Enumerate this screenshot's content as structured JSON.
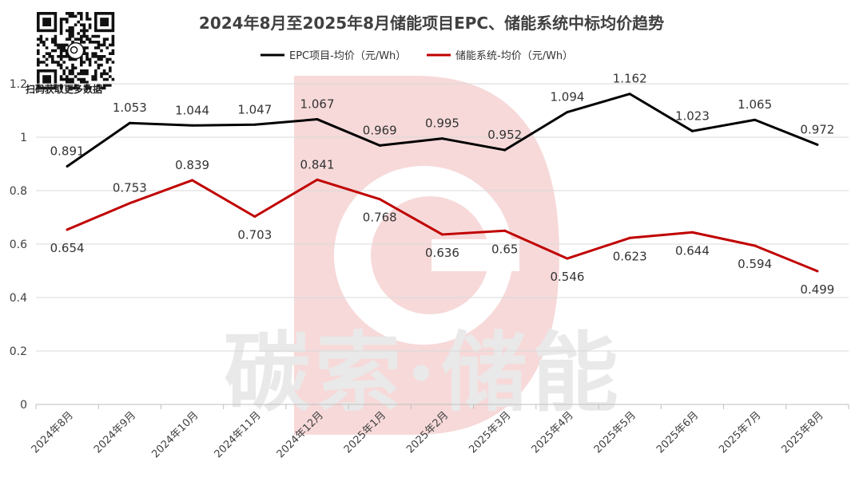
{
  "chart_data": {
    "type": "line",
    "title": "2024年8月至2025年8月储能项目EPC、储能系统中标均价趋势",
    "categories": [
      "2024年8月",
      "2024年9月",
      "2024年10月",
      "2024年11月",
      "2024年12月",
      "2025年1月",
      "2025年2月",
      "2025年3月",
      "2025年4月",
      "2025年5月",
      "2025年6月",
      "2025年7月",
      "2025年8月"
    ],
    "series": [
      {
        "name": "EPC项目-均价（元/Wh）",
        "color": "#000000",
        "values": [
          0.891,
          1.053,
          1.044,
          1.047,
          1.067,
          0.969,
          0.995,
          0.952,
          1.094,
          1.162,
          1.023,
          1.065,
          0.972
        ],
        "labels": [
          "0.891",
          "1.053",
          "1.044",
          "1.047",
          "1.067",
          "0.969",
          "0.995",
          "0.952",
          "1.094",
          "1.162",
          "1.023",
          "1.065",
          "0.972"
        ]
      },
      {
        "name": "储能系统-均价（元/Wh）",
        "color": "#c00000",
        "values": [
          0.654,
          0.753,
          0.839,
          0.703,
          0.841,
          0.768,
          0.636,
          0.65,
          0.546,
          0.623,
          0.644,
          0.594,
          0.499
        ],
        "labels": [
          "0.654",
          "0.753",
          "0.839",
          "0.703",
          "0.841",
          "0.768",
          "0.636",
          "0.65",
          "0.546",
          "0.623",
          "0.644",
          "0.594",
          "0.499"
        ]
      }
    ],
    "ylim": [
      0,
      1.2
    ],
    "yticks": [
      0,
      0.2,
      0.4,
      0.6,
      0.8,
      1,
      1.2
    ],
    "ytick_labels": [
      "0",
      "0.2",
      "0.4",
      "0.6",
      "0.8",
      "1",
      "1.2"
    ],
    "grid": true,
    "legend_position": "top-center",
    "xlabel": "",
    "ylabel": ""
  },
  "qr": {
    "label": "扫码获取更多数据"
  },
  "watermark": {
    "text": "碳索·储能",
    "logo_color": "#f7d9d9"
  }
}
